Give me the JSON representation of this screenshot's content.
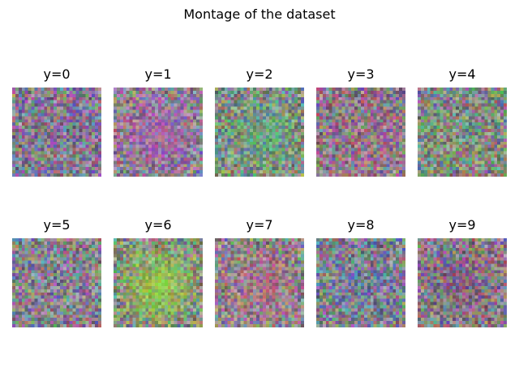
{
  "figure": {
    "title": "Montage of the dataset"
  },
  "panels": [
    {
      "label": "y=0",
      "tint": "#8a6a9a",
      "blob": "#4a7ad0",
      "blob_strength": 0.1
    },
    {
      "label": "y=1",
      "tint": "#a07aa8",
      "blob": "#c040c8",
      "blob_strength": 0.45
    },
    {
      "label": "y=2",
      "tint": "#7a9a7a",
      "blob": "#40e080",
      "blob_strength": 0.35
    },
    {
      "label": "y=3",
      "tint": "#9a6a8a",
      "blob": "#c04080",
      "blob_strength": 0.15
    },
    {
      "label": "y=4",
      "tint": "#7a8a7a",
      "blob": "#60a060",
      "blob_strength": 0.15
    },
    {
      "label": "y=5",
      "tint": "#8a7a9a",
      "blob": "#6060c0",
      "blob_strength": 0.1
    },
    {
      "label": "y=6",
      "tint": "#8a9a6a",
      "blob": "#a0ff20",
      "blob_strength": 0.55
    },
    {
      "label": "y=7",
      "tint": "#9a8a8a",
      "blob": "#e04090",
      "blob_strength": 0.35
    },
    {
      "label": "y=8",
      "tint": "#7a7a9a",
      "blob": "#3060c0",
      "blob_strength": 0.15
    },
    {
      "label": "y=9",
      "tint": "#8a6a8a",
      "blob": "#702060",
      "blob_strength": 0.25
    }
  ]
}
